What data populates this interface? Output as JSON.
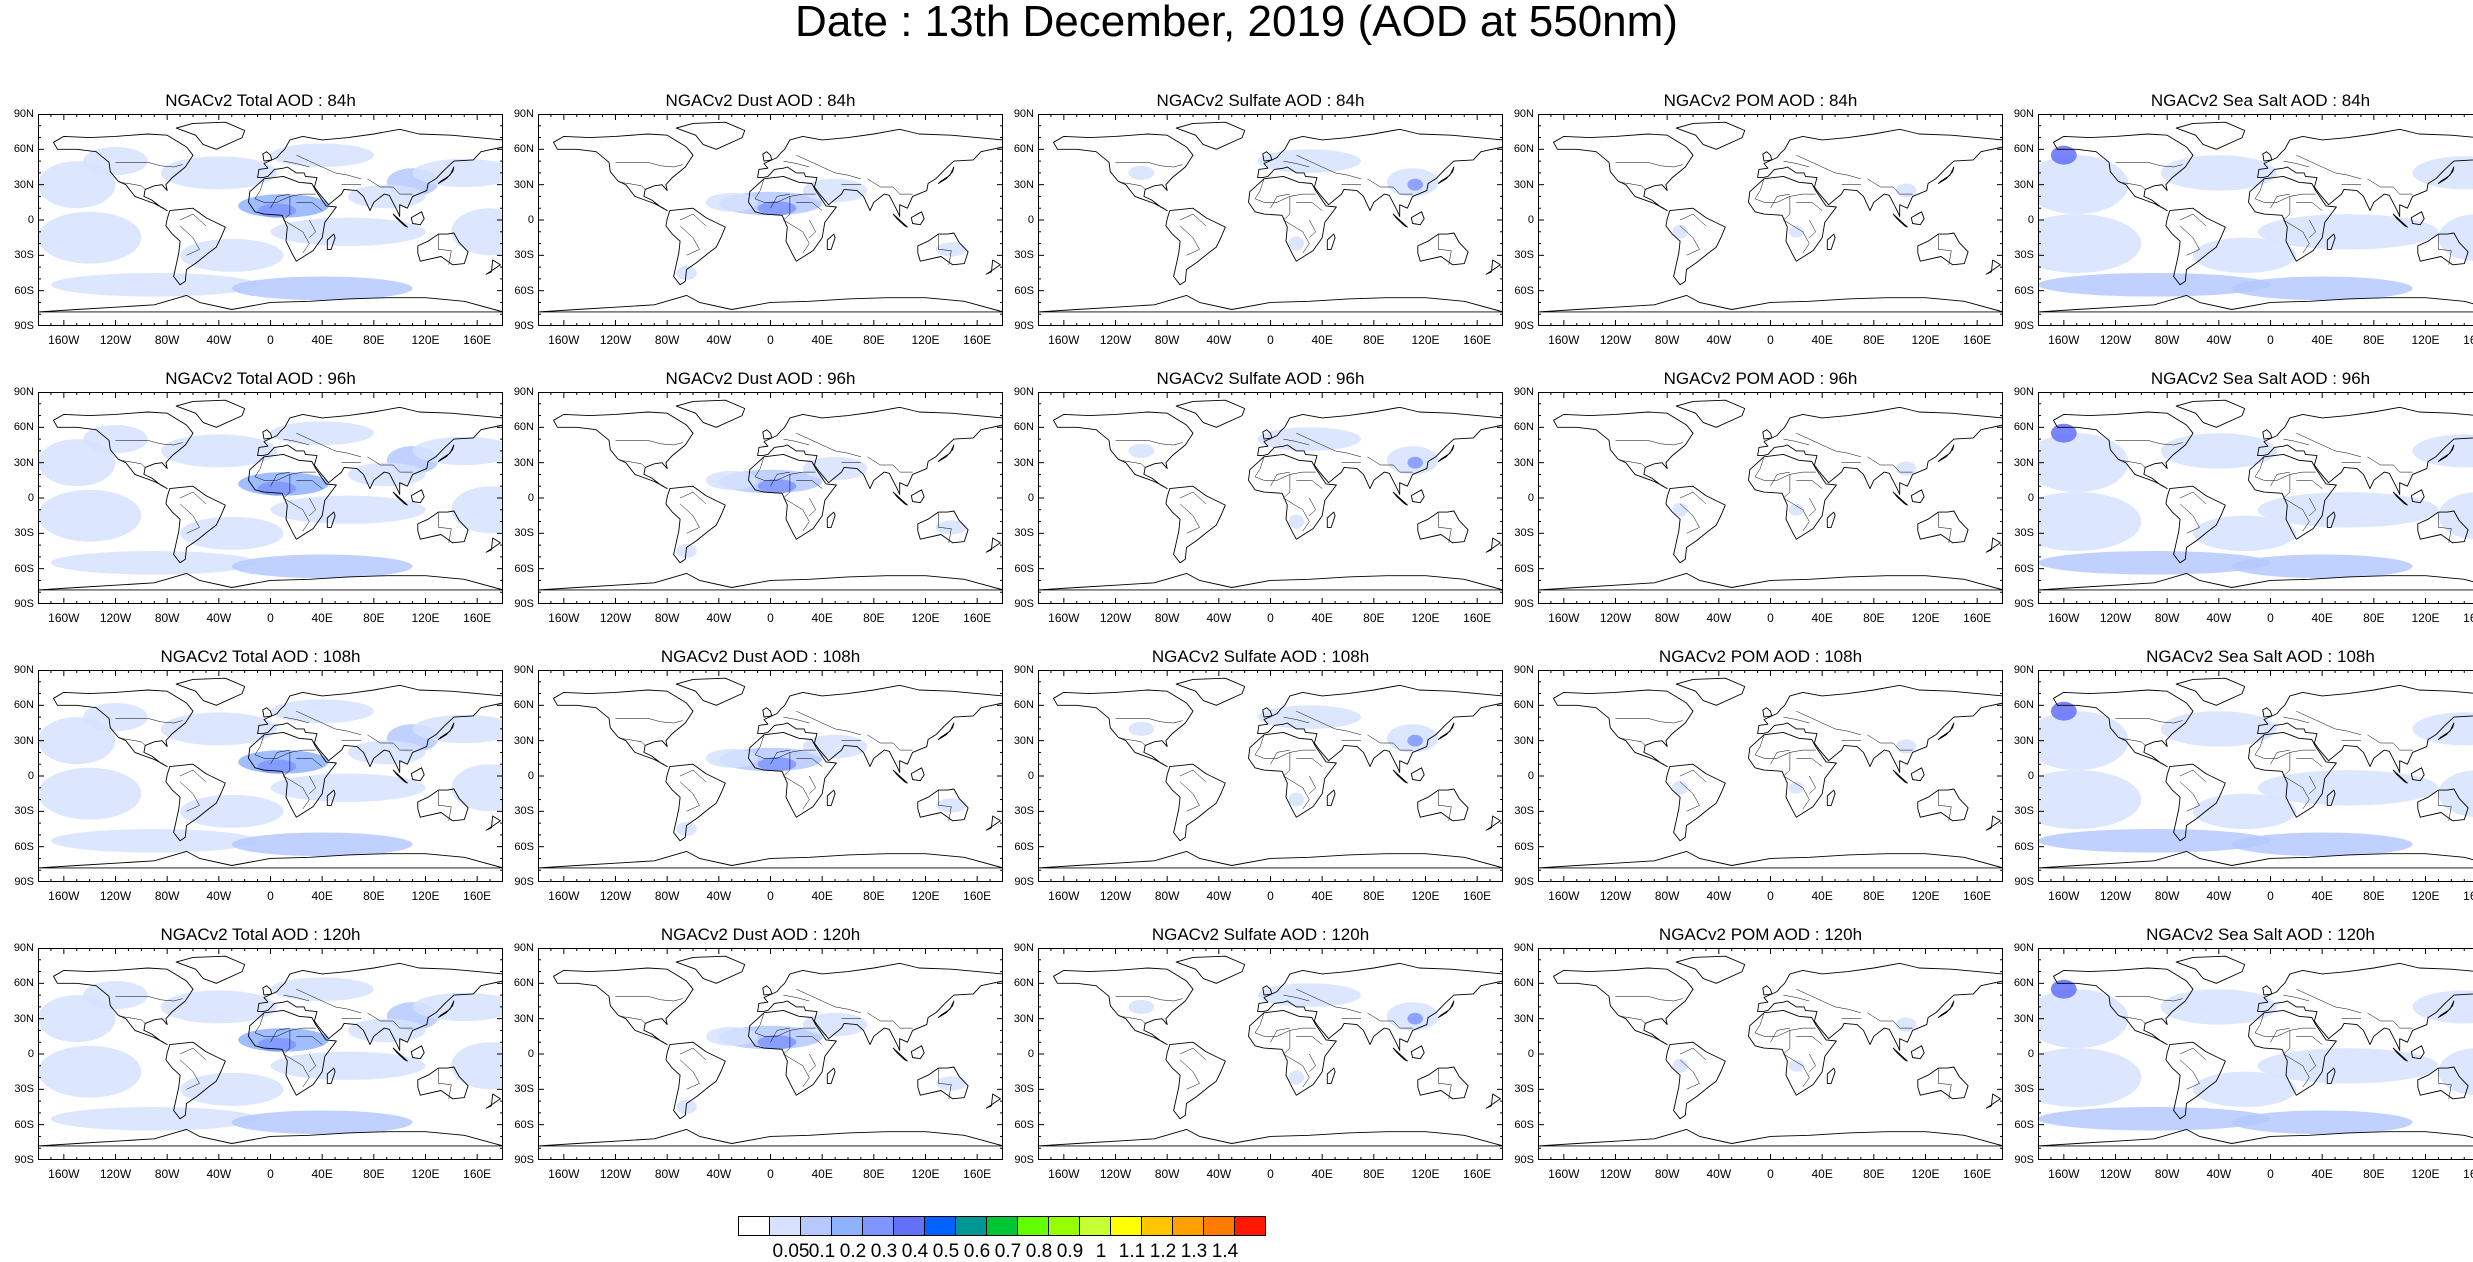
{
  "title": "Date : 13th December, 2019 (AOD at 550nm)",
  "lat_labels": [
    "90N",
    "60N",
    "30N",
    "0",
    "30S",
    "60S",
    "90S"
  ],
  "lon_labels": [
    "160W",
    "120W",
    "80W",
    "40W",
    "0",
    "40E",
    "80E",
    "120E",
    "160E"
  ],
  "panels": [
    {
      "title": "NGACv2 Total AOD : 84h",
      "variable": "total",
      "forecast_hour": "84h"
    },
    {
      "title": "NGACv2 Dust AOD : 84h",
      "variable": "dust",
      "forecast_hour": "84h"
    },
    {
      "title": "NGACv2 Sulfate AOD : 84h",
      "variable": "sulfate",
      "forecast_hour": "84h"
    },
    {
      "title": "NGACv2 POM AOD : 84h",
      "variable": "pom",
      "forecast_hour": "84h"
    },
    {
      "title": "NGACv2 Sea Salt AOD : 84h",
      "variable": "seasalt",
      "forecast_hour": "84h"
    },
    {
      "title": "NGACv2 Total AOD : 96h",
      "variable": "total",
      "forecast_hour": "96h"
    },
    {
      "title": "NGACv2 Dust AOD : 96h",
      "variable": "dust",
      "forecast_hour": "96h"
    },
    {
      "title": "NGACv2 Sulfate AOD : 96h",
      "variable": "sulfate",
      "forecast_hour": "96h"
    },
    {
      "title": "NGACv2 POM AOD : 96h",
      "variable": "pom",
      "forecast_hour": "96h"
    },
    {
      "title": "NGACv2 Sea Salt AOD : 96h",
      "variable": "seasalt",
      "forecast_hour": "96h"
    },
    {
      "title": "NGACv2 Total AOD : 108h",
      "variable": "total",
      "forecast_hour": "108h"
    },
    {
      "title": "NGACv2 Dust AOD : 108h",
      "variable": "dust",
      "forecast_hour": "108h"
    },
    {
      "title": "NGACv2 Sulfate AOD : 108h",
      "variable": "sulfate",
      "forecast_hour": "108h"
    },
    {
      "title": "NGACv2 POM AOD : 108h",
      "variable": "pom",
      "forecast_hour": "108h"
    },
    {
      "title": "NGACv2 Sea Salt AOD : 108h",
      "variable": "seasalt",
      "forecast_hour": "108h"
    },
    {
      "title": "NGACv2 Total AOD : 120h",
      "variable": "total",
      "forecast_hour": "120h"
    },
    {
      "title": "NGACv2 Dust AOD : 120h",
      "variable": "dust",
      "forecast_hour": "120h"
    },
    {
      "title": "NGACv2 Sulfate AOD : 120h",
      "variable": "sulfate",
      "forecast_hour": "120h"
    },
    {
      "title": "NGACv2 POM AOD : 120h",
      "variable": "pom",
      "forecast_hour": "120h"
    },
    {
      "title": "NGACv2 Sea Salt  AOD : 120h",
      "variable": "seasalt",
      "forecast_hour": "120h"
    }
  ],
  "colorbar": {
    "labels": [
      "0.05",
      "0.1",
      "0.2",
      "0.3",
      "0.4",
      "0.5",
      "0.6",
      "0.7",
      "0.8",
      "0.9",
      "1",
      "1.1",
      "1.2",
      "1.3",
      "1.4"
    ],
    "colors": [
      "#ffffff",
      "#d6e2ff",
      "#b5c9ff",
      "#8eb2ff",
      "#7f96ff",
      "#6370f8",
      "#0063ff",
      "#009696",
      "#00c633",
      "#63ff00",
      "#96ff00",
      "#c6ff33",
      "#ffff00",
      "#ffc600",
      "#ffa000",
      "#ff7c00",
      "#ff1900"
    ]
  }
}
